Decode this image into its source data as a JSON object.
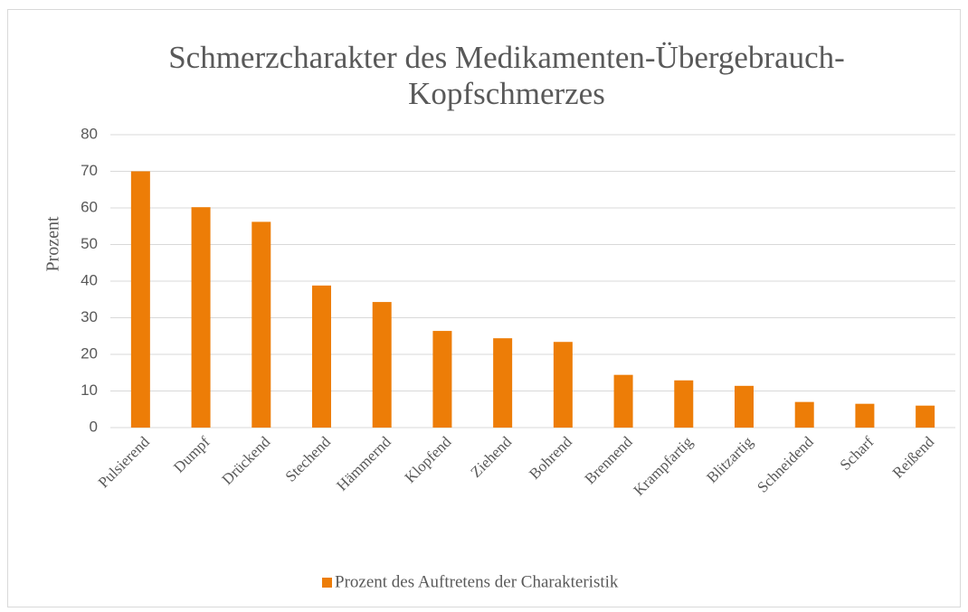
{
  "chart_data": {
    "type": "bar",
    "title": "Schmerzcharakter des Medikamenten-Übergebrauch-Kopfschmerzes",
    "y_label": "Prozent",
    "categories": [
      "Pulsierend",
      "Dumpf",
      "Drückend",
      "Stechend",
      "Hämmernd",
      "Klopfend",
      "Ziehend",
      "Bohrend",
      "Brennend",
      "Krampfartig",
      "Blitzartig",
      "Schneidend",
      "Scharf",
      "Reißend"
    ],
    "series": [
      {
        "name": "Prozent des Auftretens der Charakteristik",
        "color": "#ed7d07",
        "values": [
          70,
          60.2,
          56.2,
          38.8,
          34.3,
          26.4,
          24.4,
          23.4,
          14.4,
          12.9,
          11.4,
          7,
          6.5,
          6
        ]
      }
    ],
    "ylim": [
      0,
      80
    ],
    "yticks": [
      0,
      10,
      20,
      30,
      40,
      50,
      60,
      70,
      80
    ],
    "grid": true,
    "legend": "bottom"
  }
}
